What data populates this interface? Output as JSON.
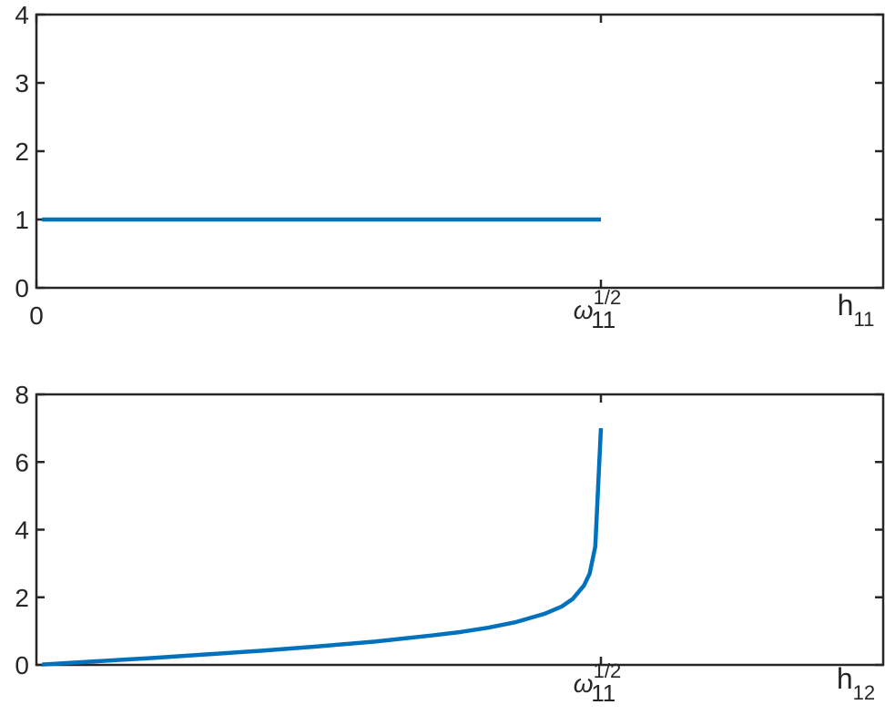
{
  "colors": {
    "series": "#0072BD",
    "axis": "#262626",
    "background": "#ffffff"
  },
  "chart_data": [
    {
      "type": "line",
      "title": "",
      "xlabel": {
        "base": "h",
        "subscript": "11"
      },
      "ylabel": "",
      "xlim": [
        0,
        1.5
      ],
      "ylim": [
        0,
        4
      ],
      "yticks": [
        "0",
        "1",
        "2",
        "3",
        "4"
      ],
      "xticks": [
        {
          "value": 0,
          "label": "0"
        },
        {
          "value": 1,
          "label": {
            "base": "ω",
            "subscript": "11",
            "superscript": "1/2"
          }
        }
      ],
      "grid": false,
      "series": [
        {
          "x": [
            0.01,
            1.0
          ],
          "y": [
            1,
            1
          ]
        }
      ]
    },
    {
      "type": "line",
      "title": "",
      "xlabel": {
        "base": "h",
        "subscript": "12"
      },
      "ylabel": "",
      "xlim": [
        0,
        1.5
      ],
      "ylim": [
        0,
        8
      ],
      "yticks": [
        "0",
        "2",
        "4",
        "6",
        "8"
      ],
      "xticks": [
        {
          "value": 1,
          "label": {
            "base": "ω",
            "subscript": "11",
            "superscript": "1/2"
          }
        }
      ],
      "grid": false,
      "series": [
        {
          "x": [
            0.01,
            0.1,
            0.2,
            0.3,
            0.4,
            0.5,
            0.6,
            0.7,
            0.75,
            0.8,
            0.85,
            0.9,
            0.93,
            0.95,
            0.97,
            0.98,
            0.99,
            1.0
          ],
          "y": [
            0.01,
            0.1,
            0.2,
            0.31,
            0.42,
            0.55,
            0.69,
            0.87,
            0.97,
            1.1,
            1.27,
            1.51,
            1.72,
            1.95,
            2.35,
            2.7,
            3.5,
            7.0
          ]
        }
      ]
    }
  ]
}
